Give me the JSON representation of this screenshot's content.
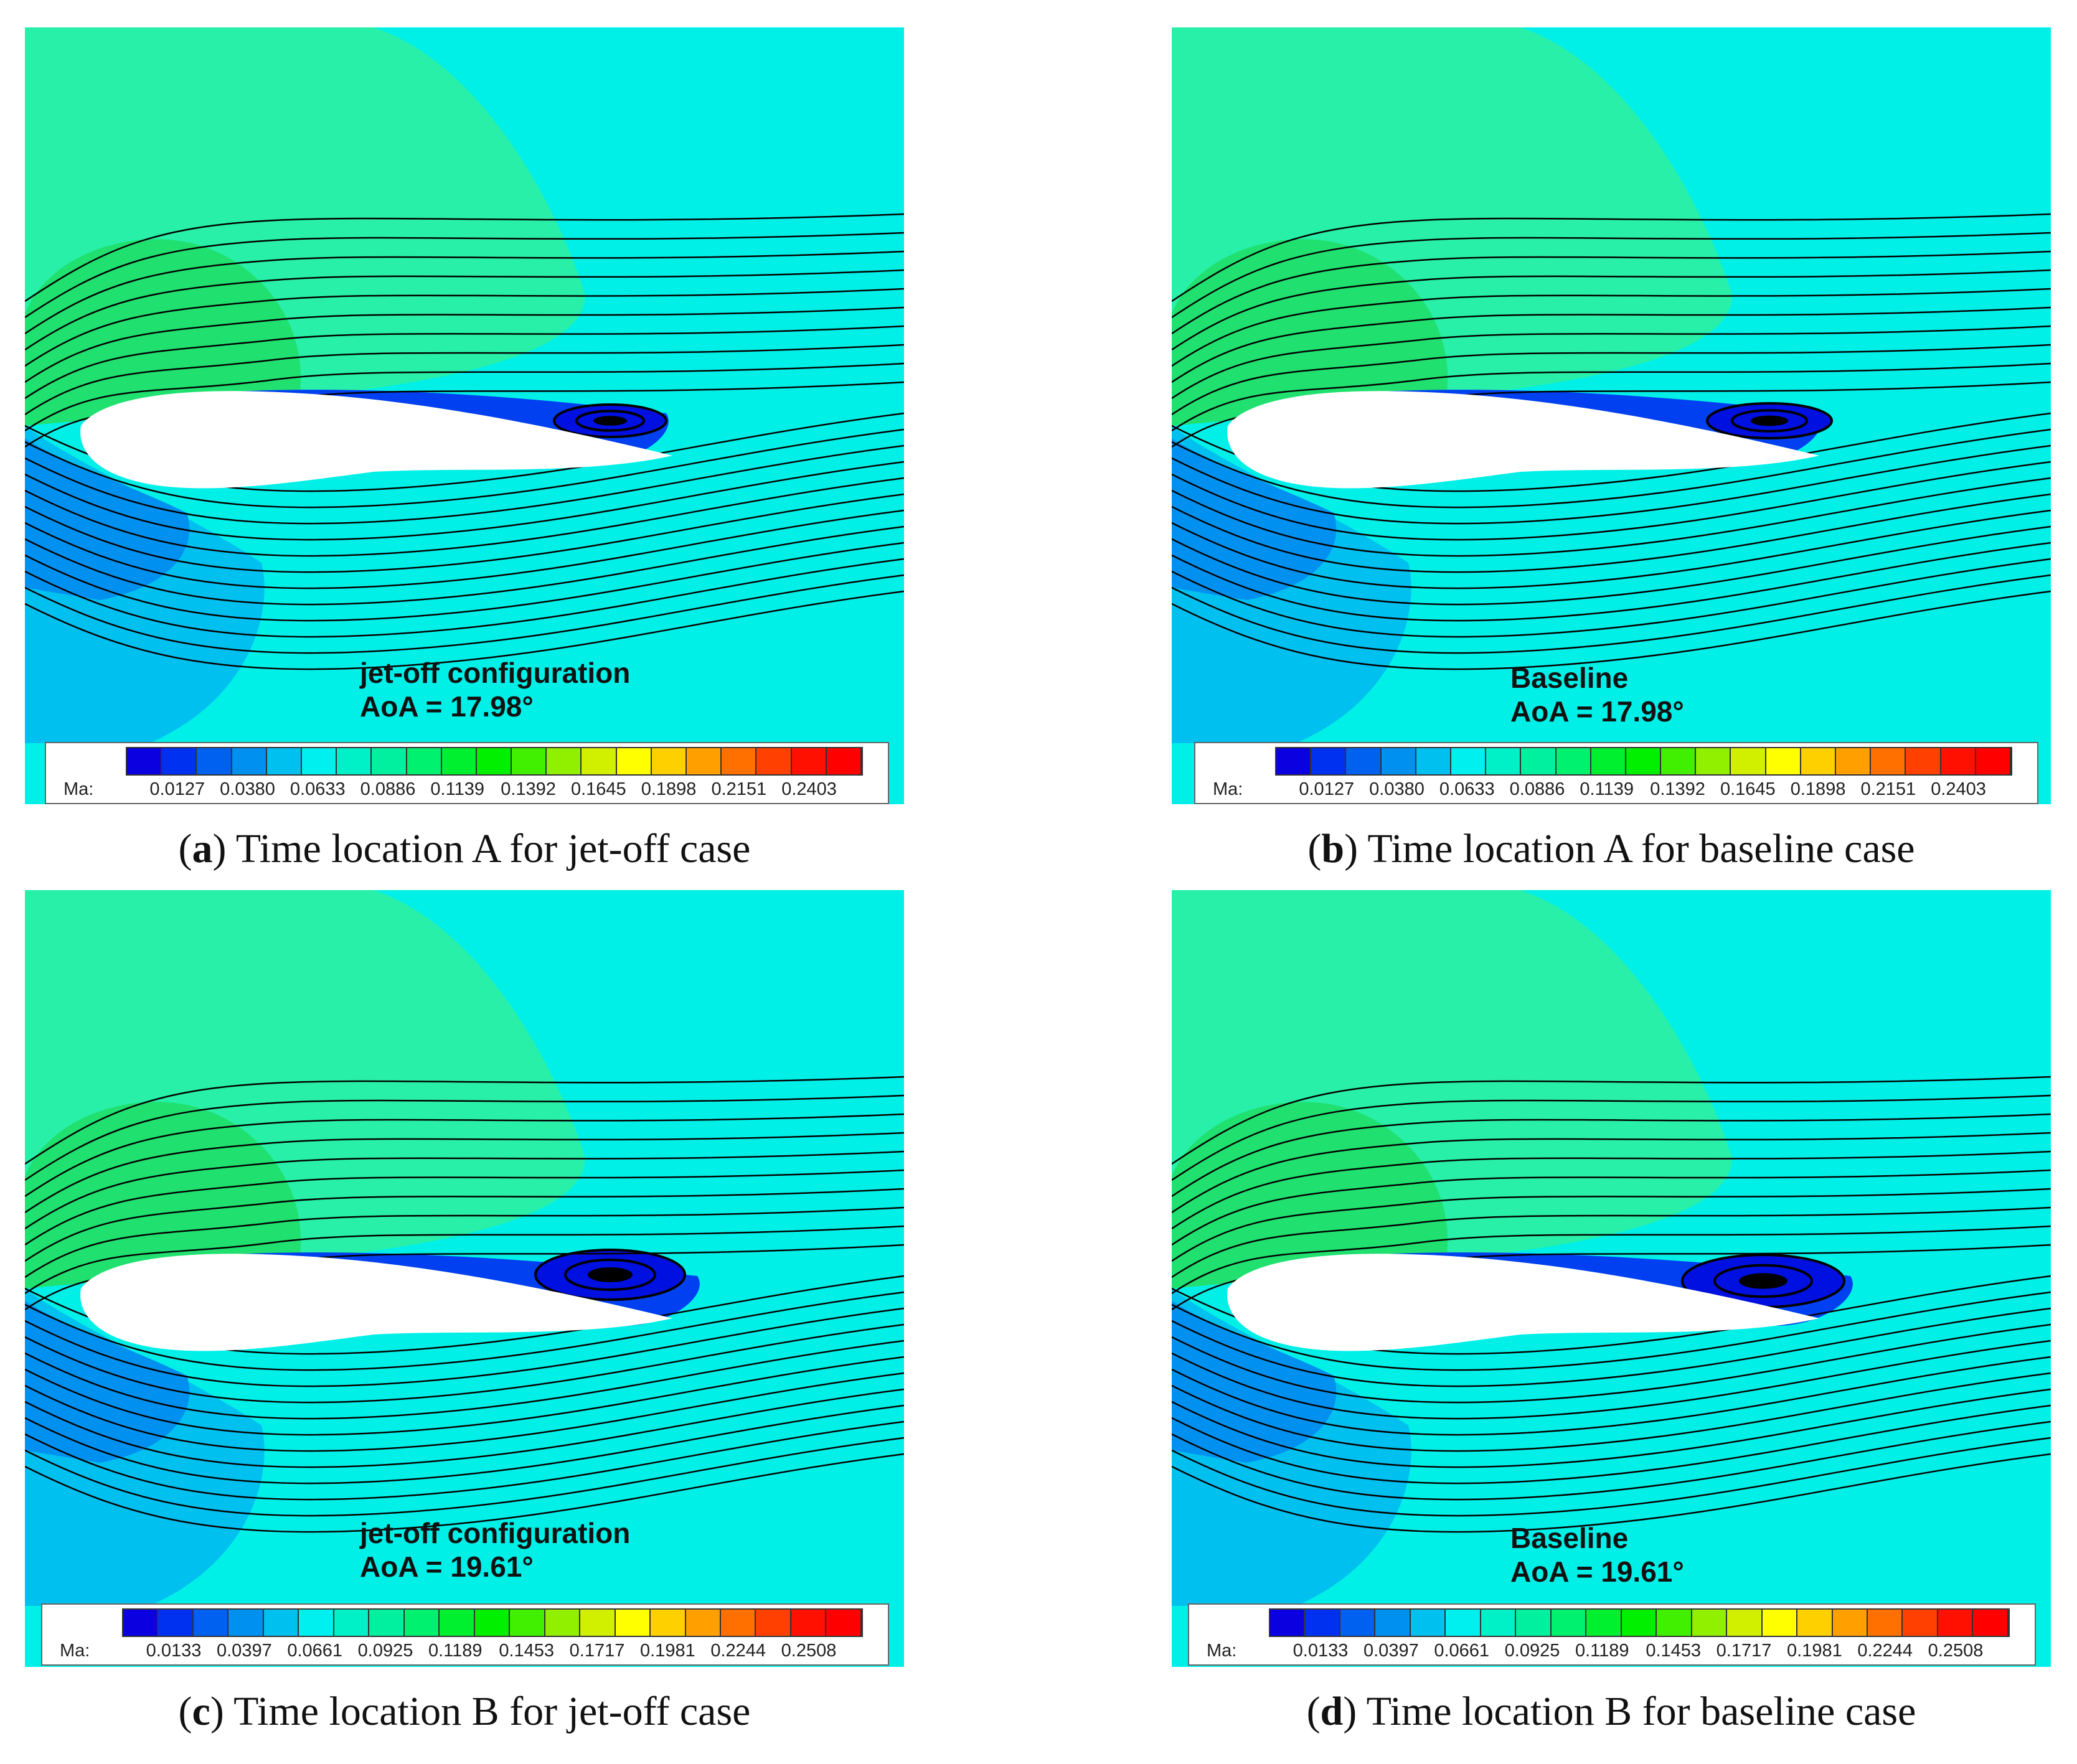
{
  "panels": [
    {
      "id": "a",
      "annotation_line1": "jet-off configuration",
      "annotation_line2": "AoA = 17.98°",
      "legend_prefix": "Ma:",
      "legend_ticks": [
        "0.0127",
        "0.0380",
        "0.0633",
        "0.0886",
        "0.1139",
        "0.1392",
        "0.1645",
        "0.1898",
        "0.2151",
        "0.2403"
      ],
      "caption_letter": "a",
      "caption_text": "Time location A for jet-off case"
    },
    {
      "id": "b",
      "annotation_line1": "Baseline",
      "annotation_line2": "AoA = 17.98°",
      "legend_prefix": "Ma:",
      "legend_ticks": [
        "0.0127",
        "0.0380",
        "0.0633",
        "0.0886",
        "0.1139",
        "0.1392",
        "0.1645",
        "0.1898",
        "0.2151",
        "0.2403"
      ],
      "caption_letter": "b",
      "caption_text": "Time location A for baseline case"
    },
    {
      "id": "c",
      "annotation_line1": "jet-off configuration",
      "annotation_line2": "AoA = 19.61°",
      "legend_prefix": "Ma:",
      "legend_ticks": [
        "0.0133",
        "0.0397",
        "0.0661",
        "0.0925",
        "0.1189",
        "0.1453",
        "0.1717",
        "0.1981",
        "0.2244",
        "0.2508"
      ],
      "caption_letter": "c",
      "caption_text": "Time location B for jet-off case"
    },
    {
      "id": "d",
      "annotation_line1": "Baseline",
      "annotation_line2": "AoA = 19.61°",
      "legend_prefix": "Ma:",
      "legend_ticks": [
        "0.0133",
        "0.0397",
        "0.0661",
        "0.0925",
        "0.1189",
        "0.1453",
        "0.1717",
        "0.1981",
        "0.2244",
        "0.2508"
      ],
      "caption_letter": "d",
      "caption_text": "Time location B for baseline case"
    }
  ],
  "colormap": [
    "#0a00e0",
    "#0030f0",
    "#0060f0",
    "#0090f0",
    "#00c0f0",
    "#00f0f0",
    "#00f0c8",
    "#00f0a0",
    "#00f070",
    "#00f030",
    "#00f000",
    "#40f000",
    "#90f000",
    "#d0f000",
    "#ffff00",
    "#ffd000",
    "#ffa000",
    "#ff7000",
    "#ff4000",
    "#ff1000",
    "#ff0000"
  ],
  "field_colors": {
    "freestream": "#00f0e8",
    "upper_lobe": "#28f0a8",
    "inner_lobe": "#20e070",
    "lower_blue": "#00c0f0",
    "lower_mid": "#0090f0",
    "separation": "#0040f0",
    "vortex_core": "#0010e0",
    "airfoil": "#ffffff",
    "streamline": "#000000"
  }
}
